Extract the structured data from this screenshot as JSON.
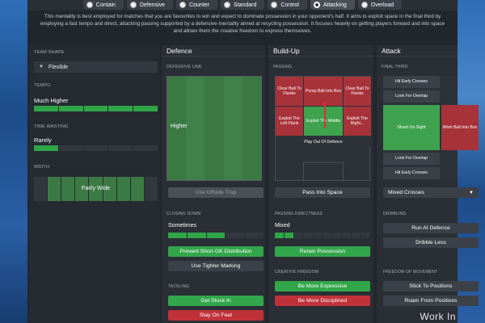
{
  "mentality": {
    "options": [
      "Contain",
      "Defensive",
      "Counter",
      "Standard",
      "Control",
      "Attacking",
      "Overload"
    ],
    "selected": "Attacking"
  },
  "description": "This mentality is best employed for matches that you are favourites to win and expect to dominate possession in your opponent's half. It aims to exploit space in the final third by employing a fast tempo and direct, attacking passing supported by a defensive mentality aimed at recycling possession. It focuses heavily on getting players forward and into space and allows them the creative freedom to express themselves.",
  "left": {
    "team_shape_label": "TEAM SHAPE",
    "team_shape_value": "Flexible",
    "tempo_label": "TEMPO",
    "tempo_value": "Much Higher",
    "time_wasting_label": "TIME WASTING",
    "time_wasting_value": "Rarely",
    "width_label": "WIDTH",
    "width_value": "Fairly Wide"
  },
  "defence": {
    "title": "Defence",
    "defensive_line_label": "DEFENSIVE LINE",
    "defensive_line_value": "Higher",
    "offside_trap": "Use Offside Trap",
    "closing_down_label": "CLOSING DOWN",
    "closing_down_value": "Sometimes",
    "btn_gk": "Prevent Short GK Distribution",
    "btn_marking": "Use Tighter Marking",
    "tackling_label": "TACKLING",
    "btn_stuck_in": "Get Stuck In",
    "btn_stay_feet": "Stay On Feet"
  },
  "buildup": {
    "title": "Build-Up",
    "passing_label": "PASSING",
    "cells": {
      "clear_left": "Clear Ball To Flanks",
      "pump": "Pump Ball Into Box",
      "clear_right": "Clear Ball To Flanks",
      "exploit_left": "Exploit The Left Flank",
      "exploit_middle": "Exploit The Middle",
      "exploit_right": "Exploit The Right...",
      "play_out": "Play Out Of Defence"
    },
    "pass_into_space": "Pass Into Space",
    "directness_label": "PASSING DIRECTNESS",
    "directness_value": "Mixed",
    "retain": "Retain Possession",
    "creative_label": "CREATIVE FREEDOM",
    "btn_expressive": "Be More Expressive",
    "btn_disciplined": "Be More Disciplined"
  },
  "attack": {
    "title": "Attack",
    "final_third_label": "FINAL THIRD",
    "cells": {
      "hit_crosses_top": "Hit Early Crosses",
      "overlap_top": "Look For Overlap",
      "shoot_on_sight": "Shoot On Sight",
      "work_ball": "Work Ball Into Box",
      "overlap_bottom": "Look For Overlap",
      "hit_crosses_bottom": "Hit Early Crosses"
    },
    "crosses_value": "Mixed Crosses",
    "dribbling_label": "DRIBBLING",
    "btn_run_defence": "Run At Defence",
    "btn_dribble_less": "Dribble Less",
    "freedom_label": "FREEDOM OF MOVEMENT",
    "btn_stick": "Stick To Positions",
    "btn_roam": "Roam From Positions"
  },
  "footer": {
    "work_in": "Work In"
  },
  "colors": {
    "green": "#32a64a",
    "red": "#c0323a",
    "panel": "#22262d"
  }
}
